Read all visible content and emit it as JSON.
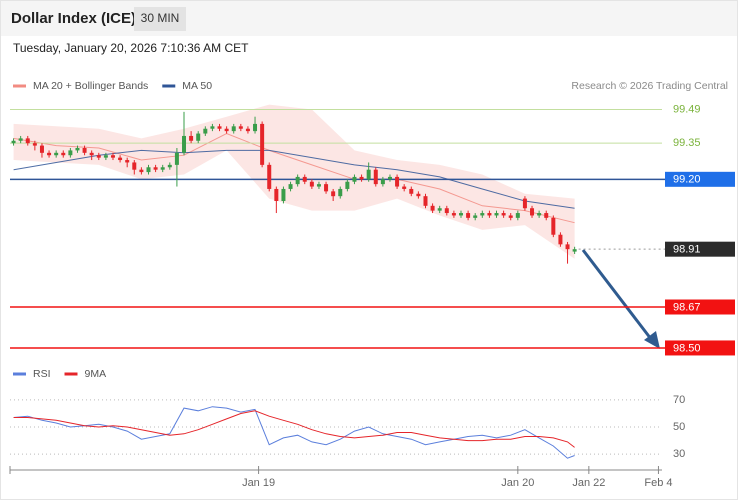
{
  "header": {
    "title": "Dollar Index (ICE)",
    "interval": "30 MIN",
    "timestamp": "Tuesday, January 20, 2026 7:10:36 AM CET"
  },
  "chart_data": [
    {
      "type": "candlestick",
      "credit": "Research © 2026 Trading Central",
      "xlim": [
        -0.5,
        91.3
      ],
      "ylim": [
        98.45,
        99.55
      ],
      "up_color": "#3a9d4a",
      "down_color": "#e5252a",
      "series": [
        {
          "name": "MA 20 + Bollinger Bands",
          "color": "#f28b82",
          "x": [
            0,
            6,
            12,
            18,
            24,
            30,
            36,
            42,
            48,
            54,
            60,
            66,
            72,
            79
          ],
          "values": [
            99.37,
            99.34,
            99.33,
            99.28,
            99.3,
            99.39,
            99.32,
            99.26,
            99.2,
            99.2,
            99.16,
            99.09,
            99.07,
            99.02
          ],
          "upper": [
            99.43,
            99.42,
            99.41,
            99.37,
            99.41,
            99.46,
            99.51,
            99.49,
            99.32,
            99.28,
            99.26,
            99.22,
            99.14,
            99.12
          ],
          "lower": [
            99.28,
            99.27,
            99.26,
            99.2,
            99.22,
            99.32,
            99.12,
            99.07,
            99.07,
            99.12,
            99.05,
            98.99,
            99.01,
            98.87
          ]
        },
        {
          "name": "MA 50",
          "color": "#2f5597",
          "x": [
            0,
            6,
            12,
            18,
            24,
            30,
            36,
            42,
            48,
            54,
            60,
            66,
            72,
            79
          ],
          "values": [
            99.24,
            99.27,
            99.3,
            99.32,
            99.31,
            99.32,
            99.32,
            99.29,
            99.26,
            99.24,
            99.21,
            99.16,
            99.11,
            99.08
          ]
        }
      ],
      "levels": [
        {
          "value": 99.49,
          "color": "#7bb33c",
          "line_color": "#c3df9f",
          "box": false
        },
        {
          "value": 99.35,
          "color": "#7bb33c",
          "line_color": "#c3df9f",
          "box": false
        },
        {
          "value": 99.2,
          "label": "99.20",
          "color": "#1f6fe8",
          "line_color": "#2f5597",
          "box": true
        },
        {
          "value": 98.91,
          "color": "#2b2b2b",
          "line_color": "#9a9a9a",
          "box": true,
          "dotted": true
        },
        {
          "value": 98.67,
          "color": "#f21212",
          "line_color": "#f21212",
          "box": true
        },
        {
          "value": 98.5,
          "label": "98.50",
          "color": "#f21212",
          "line_color": "#f21212",
          "box": true
        }
      ],
      "candles": [
        [
          99.35,
          99.37,
          99.34,
          99.36
        ],
        [
          99.36,
          99.38,
          99.35,
          99.37
        ],
        [
          99.37,
          99.38,
          99.34,
          99.35
        ],
        [
          99.35,
          99.36,
          99.32,
          99.34
        ],
        [
          99.34,
          99.35,
          99.29,
          99.31
        ],
        [
          99.31,
          99.32,
          99.29,
          99.3
        ],
        [
          99.3,
          99.32,
          99.29,
          99.31
        ],
        [
          99.31,
          99.32,
          99.29,
          99.3
        ],
        [
          99.3,
          99.33,
          99.29,
          99.32
        ],
        [
          99.32,
          99.34,
          99.31,
          99.33
        ],
        [
          99.33,
          99.34,
          99.3,
          99.31
        ],
        [
          99.31,
          99.32,
          99.28,
          99.3
        ],
        [
          99.3,
          99.31,
          99.28,
          99.29
        ],
        [
          99.29,
          99.31,
          99.28,
          99.3
        ],
        [
          99.3,
          99.31,
          99.28,
          99.29
        ],
        [
          99.29,
          99.3,
          99.27,
          99.28
        ],
        [
          99.28,
          99.29,
          99.25,
          99.27
        ],
        [
          99.27,
          99.28,
          99.22,
          99.24
        ],
        [
          99.24,
          99.25,
          99.22,
          99.23
        ],
        [
          99.23,
          99.26,
          99.22,
          99.25
        ],
        [
          99.25,
          99.26,
          99.23,
          99.24
        ],
        [
          99.24,
          99.26,
          99.23,
          99.25
        ],
        [
          99.25,
          99.27,
          99.24,
          99.26
        ],
        [
          99.26,
          99.33,
          99.17,
          99.31
        ],
        [
          99.31,
          99.48,
          99.3,
          99.38
        ],
        [
          99.38,
          99.4,
          99.35,
          99.36
        ],
        [
          99.36,
          99.4,
          99.35,
          99.39
        ],
        [
          99.39,
          99.42,
          99.38,
          99.41
        ],
        [
          99.41,
          99.43,
          99.4,
          99.42
        ],
        [
          99.42,
          99.43,
          99.4,
          99.41
        ],
        [
          99.41,
          99.42,
          99.39,
          99.4
        ],
        [
          99.4,
          99.43,
          99.39,
          99.42
        ],
        [
          99.42,
          99.43,
          99.4,
          99.41
        ],
        [
          99.41,
          99.42,
          99.39,
          99.4
        ],
        [
          99.4,
          99.46,
          99.39,
          99.43
        ],
        [
          99.43,
          99.44,
          99.25,
          99.26
        ],
        [
          99.26,
          99.27,
          99.15,
          99.16
        ],
        [
          99.16,
          99.17,
          99.06,
          99.11
        ],
        [
          99.11,
          99.17,
          99.1,
          99.16
        ],
        [
          99.16,
          99.19,
          99.15,
          99.18
        ],
        [
          99.18,
          99.22,
          99.17,
          99.21
        ],
        [
          99.21,
          99.22,
          99.18,
          99.19
        ],
        [
          99.19,
          99.2,
          99.16,
          99.17
        ],
        [
          99.17,
          99.19,
          99.16,
          99.18
        ],
        [
          99.18,
          99.19,
          99.14,
          99.15
        ],
        [
          99.15,
          99.16,
          99.11,
          99.13
        ],
        [
          99.13,
          99.17,
          99.12,
          99.16
        ],
        [
          99.16,
          99.2,
          99.15,
          99.19
        ],
        [
          99.19,
          99.22,
          99.18,
          99.21
        ],
        [
          99.21,
          99.22,
          99.19,
          99.2
        ],
        [
          99.2,
          99.27,
          99.19,
          99.24
        ],
        [
          99.24,
          99.25,
          99.17,
          99.18
        ],
        [
          99.18,
          99.21,
          99.17,
          99.2
        ],
        [
          99.2,
          99.22,
          99.19,
          99.21
        ],
        [
          99.21,
          99.22,
          99.16,
          99.17
        ],
        [
          99.17,
          99.18,
          99.15,
          99.16
        ],
        [
          99.16,
          99.17,
          99.13,
          99.14
        ],
        [
          99.14,
          99.15,
          99.12,
          99.13
        ],
        [
          99.13,
          99.14,
          99.08,
          99.09
        ],
        [
          99.09,
          99.1,
          99.06,
          99.07
        ],
        [
          99.07,
          99.09,
          99.06,
          99.08
        ],
        [
          99.08,
          99.09,
          99.05,
          99.06
        ],
        [
          99.06,
          99.07,
          99.04,
          99.05
        ],
        [
          99.05,
          99.07,
          99.04,
          99.06
        ],
        [
          99.06,
          99.07,
          99.03,
          99.04
        ],
        [
          99.04,
          99.06,
          99.03,
          99.05
        ],
        [
          99.05,
          99.07,
          99.04,
          99.06
        ],
        [
          99.06,
          99.07,
          99.04,
          99.05
        ],
        [
          99.05,
          99.07,
          99.04,
          99.06
        ],
        [
          99.06,
          99.07,
          99.04,
          99.05
        ],
        [
          99.05,
          99.06,
          99.03,
          99.04
        ],
        [
          99.04,
          99.07,
          99.03,
          99.06
        ],
        [
          99.12,
          99.13,
          99.07,
          99.08
        ],
        [
          99.08,
          99.09,
          99.04,
          99.05
        ],
        [
          99.05,
          99.07,
          99.04,
          99.06
        ],
        [
          99.06,
          99.07,
          99.03,
          99.04
        ],
        [
          99.04,
          99.05,
          98.96,
          98.97
        ],
        [
          98.97,
          98.98,
          98.92,
          98.93
        ],
        [
          98.93,
          98.94,
          98.85,
          98.91
        ],
        [
          98.9,
          98.92,
          98.89,
          98.91
        ]
      ]
    },
    {
      "type": "line",
      "xlim": [
        -0.5,
        91.3
      ],
      "ylim": [
        22,
        81
      ],
      "yticks": [
        70,
        50,
        30
      ],
      "grid": true,
      "xticks": [
        {
          "value": 34.5,
          "label": "Jan 19"
        },
        {
          "value": 71,
          "label": "Jan 20"
        },
        {
          "value": 81,
          "label": "Jan 22"
        },
        {
          "value": 90.8,
          "label": "Feb 4"
        }
      ],
      "series": [
        {
          "name": "RSI",
          "color": "#5b7fdc",
          "x": [
            0,
            2,
            4,
            6,
            8,
            10,
            12,
            14,
            16,
            18,
            20,
            22,
            24,
            26,
            28,
            30,
            32,
            34,
            36,
            38,
            40,
            42,
            44,
            46,
            48,
            50,
            52,
            54,
            56,
            58,
            60,
            62,
            64,
            66,
            68,
            70,
            72,
            74,
            76,
            78,
            79
          ],
          "values": [
            57,
            58,
            55,
            53,
            50,
            51,
            52,
            50,
            47,
            41,
            43,
            45,
            64,
            62,
            65,
            64,
            61,
            63,
            37,
            42,
            44,
            39,
            37,
            41,
            47,
            50,
            45,
            43,
            41,
            37,
            39,
            41,
            43,
            44,
            42,
            44,
            48,
            42,
            36,
            27,
            29
          ]
        },
        {
          "name": "9MA",
          "color": "#e5252a",
          "x": [
            0,
            2,
            4,
            6,
            8,
            10,
            12,
            14,
            16,
            18,
            20,
            22,
            24,
            26,
            28,
            30,
            32,
            34,
            36,
            38,
            40,
            42,
            44,
            46,
            48,
            50,
            52,
            54,
            56,
            58,
            60,
            62,
            64,
            66,
            68,
            70,
            72,
            74,
            76,
            78,
            79
          ],
          "values": [
            57,
            57,
            56,
            55,
            53,
            51,
            50,
            51,
            50,
            48,
            46,
            44,
            45,
            48,
            52,
            56,
            60,
            62,
            58,
            55,
            52,
            48,
            45,
            43,
            42,
            43,
            44,
            46,
            46,
            44,
            42,
            41,
            40,
            40,
            41,
            41,
            43,
            43,
            42,
            39,
            35
          ]
        }
      ]
    }
  ]
}
